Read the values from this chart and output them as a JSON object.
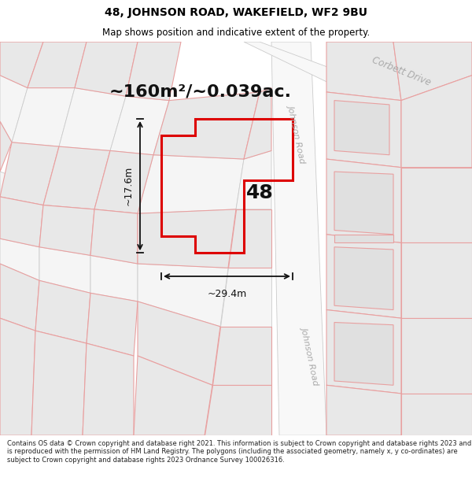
{
  "title_line1": "48, JOHNSON ROAD, WAKEFIELD, WF2 9BU",
  "title_line2": "Map shows position and indicative extent of the property.",
  "area_text": "~160m²/~0.039ac.",
  "property_number": "48",
  "dim_width": "~29.4m",
  "dim_height": "~17.6m",
  "footer_text": "Contains OS data © Crown copyright and database right 2021. This information is subject to Crown copyright and database rights 2023 and is reproduced with the permission of HM Land Registry. The polygons (including the associated geometry, namely x, y co-ordinates) are subject to Crown copyright and database rights 2023 Ordnance Survey 100026316.",
  "map_bg": "#ffffff",
  "parcel_fill": "#e8e8e8",
  "parcel_edge": "#e8a0a0",
  "road_fill": "#f0f0f0",
  "road_edge": "#c8c8c8",
  "prop_edge": "#dd0000",
  "prop_lw": 2.2,
  "dim_color": "#111111",
  "label_color": "#aaaaaa",
  "corbett_label": "Corbett Drive",
  "johnson_label": "Johnson Road",
  "title_fontsize": 10,
  "subtitle_fontsize": 8.5,
  "area_fontsize": 16,
  "number_fontsize": 18
}
